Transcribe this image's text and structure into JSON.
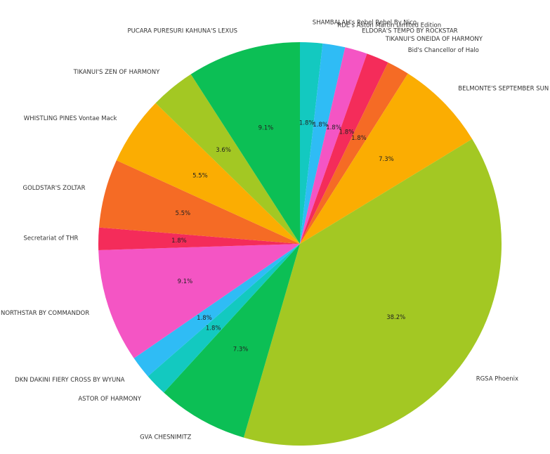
{
  "chart_data": {
    "type": "pie",
    "title": "",
    "start_angle_deg": 90,
    "direction": "clockwise",
    "slices": [
      {
        "label": "SHAMBALAH's Rebel Rebel By Nico",
        "value": 1.8,
        "pct_label": "1.8%",
        "color": "#13c9c0"
      },
      {
        "label": "RDE's Aston Martin Limited Edition",
        "value": 1.8,
        "pct_label": "1.8%",
        "color": "#2fbcf5"
      },
      {
        "label": "ELDORA'S TEMPO BY ROCKSTAR",
        "value": 1.8,
        "pct_label": "1.8%",
        "color": "#f455c4"
      },
      {
        "label": "TIKANUI'S ONEIDA OF HARMONY",
        "value": 1.8,
        "pct_label": "1.8%",
        "color": "#f42c5a"
      },
      {
        "label": "Bid's Chancellor of Halo",
        "value": 1.8,
        "pct_label": "1.8%",
        "color": "#f56b25"
      },
      {
        "label": "BELMONTE'S SEPTEMBER SUN SHINE",
        "value": 7.3,
        "pct_label": "7.3%",
        "color": "#fbad02"
      },
      {
        "label": "RGSA Phoenix",
        "value": 38.2,
        "pct_label": "38.2%",
        "color": "#a3c823"
      },
      {
        "label": "GVA CHESNIMITZ",
        "value": 7.3,
        "pct_label": "7.3%",
        "color": "#0cbf55"
      },
      {
        "label": "ASTOR OF HARMONY",
        "value": 1.8,
        "pct_label": "1.8%",
        "color": "#13c9c0"
      },
      {
        "label": "DKN DAKINI FIERY CROSS BY WYUNA",
        "value": 1.8,
        "pct_label": "1.8%",
        "color": "#2fbcf5"
      },
      {
        "label": "WAP NORTHSTAR BY COMMANDOR",
        "value": 9.1,
        "pct_label": "9.1%",
        "color": "#f455c4"
      },
      {
        "label": "Secretariat of THR",
        "value": 1.8,
        "pct_label": "1.8%",
        "color": "#f42c5a"
      },
      {
        "label": "GOLDSTAR'S ZOLTAR",
        "value": 5.5,
        "pct_label": "5.5%",
        "color": "#f56b25"
      },
      {
        "label": "WHISTLING PINES Vontae Mack",
        "value": 5.5,
        "pct_label": "5.5%",
        "color": "#fbad02"
      },
      {
        "label": "TIKANUI'S ZEN OF HARMONY",
        "value": 3.6,
        "pct_label": "3.6%",
        "color": "#a3c823"
      },
      {
        "label": "PUCARA PURESURI KAHUNA'S LEXUS",
        "value": 9.1,
        "pct_label": "9.1%",
        "color": "#0cbf55"
      }
    ]
  }
}
